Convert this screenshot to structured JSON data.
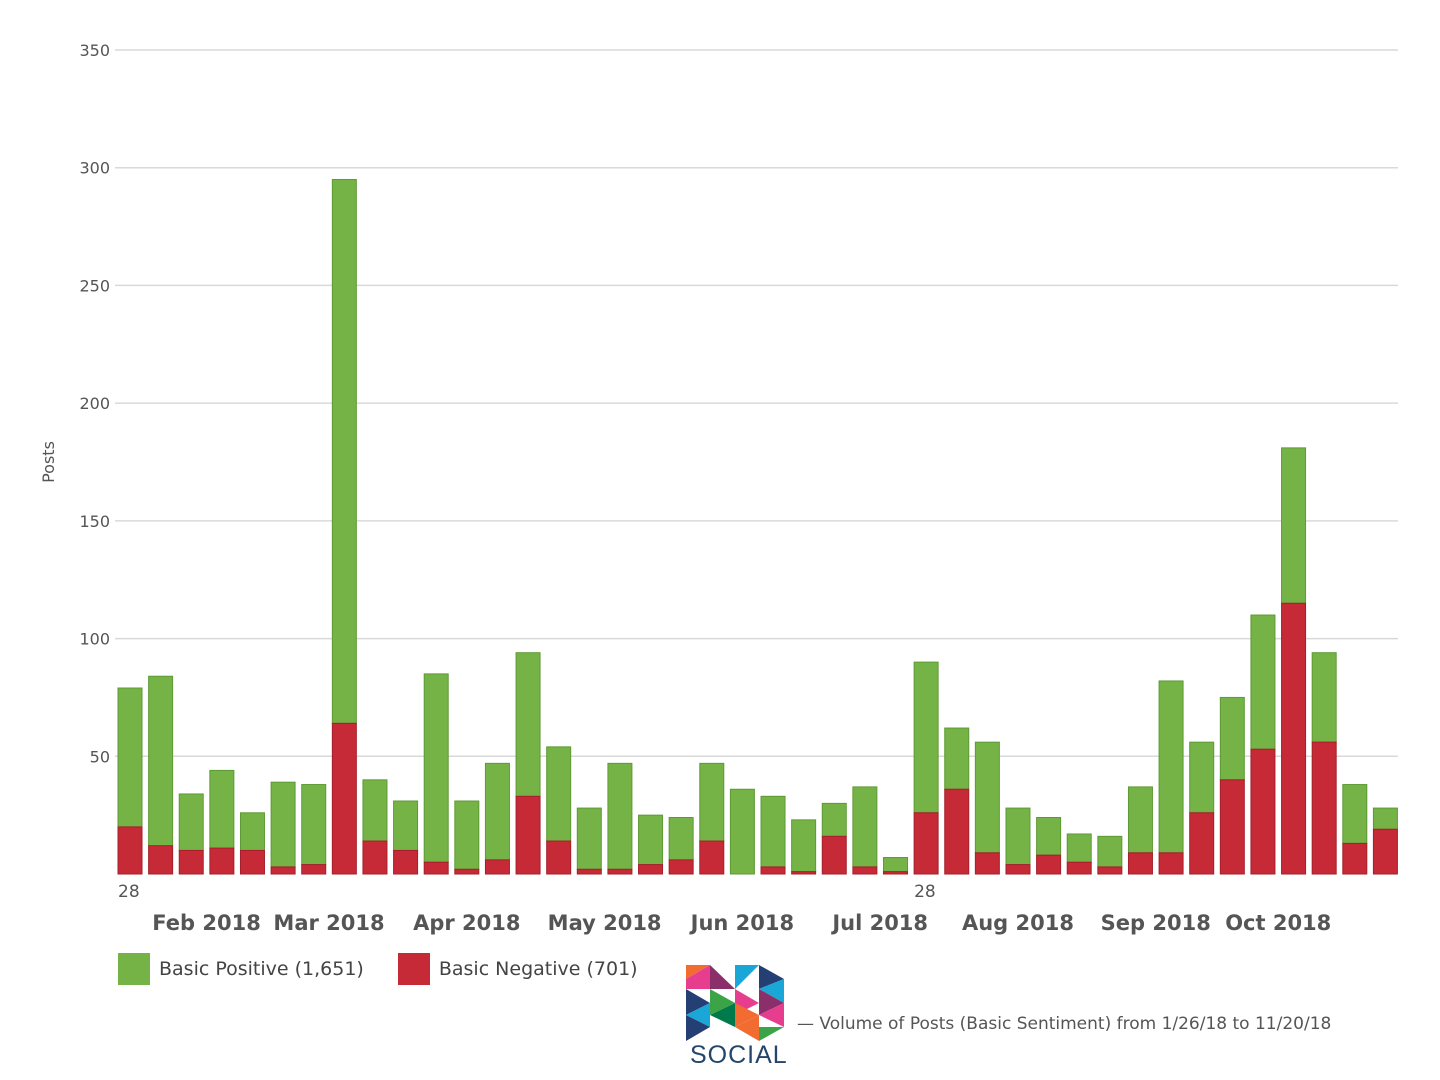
{
  "chart_data": {
    "type": "bar",
    "stacked": true,
    "ylabel": "Posts",
    "ylim": [
      0,
      350
    ],
    "yticks": [
      50,
      100,
      150,
      200,
      250,
      300,
      350
    ],
    "grid": true,
    "legend_position": "bottom-left",
    "x_minor_labels": [
      {
        "label": "28",
        "bar_index": 0
      },
      {
        "label": "28",
        "bar_index": 26
      }
    ],
    "x_major_labels": [
      {
        "label": "Feb 2018",
        "bar_index": 2.5
      },
      {
        "label": "Mar 2018",
        "bar_index": 6.5
      },
      {
        "label": "Apr 2018",
        "bar_index": 11
      },
      {
        "label": "May 2018",
        "bar_index": 15.5
      },
      {
        "label": "Jun 2018",
        "bar_index": 20
      },
      {
        "label": "Jul 2018",
        "bar_index": 24.5
      },
      {
        "label": "Aug 2018",
        "bar_index": 29
      },
      {
        "label": "Sep 2018",
        "bar_index": 33.5
      },
      {
        "label": "Oct 2018",
        "bar_index": 37.5
      }
    ],
    "series": [
      {
        "name": "Basic Negative",
        "legend": "Basic Negative (701)",
        "color": "#c62a36",
        "values": [
          20,
          12,
          10,
          11,
          10,
          3,
          4,
          64,
          14,
          10,
          5,
          2,
          6,
          33,
          14,
          2,
          2,
          4,
          6,
          14,
          0,
          3,
          1,
          16,
          3,
          1,
          26,
          36,
          9,
          4,
          8,
          5,
          3,
          9,
          9,
          26,
          40,
          53,
          115,
          56,
          13,
          19
        ]
      },
      {
        "name": "Basic Positive",
        "legend": "Basic Positive (1,651)",
        "color": "#75b347",
        "values": [
          59,
          72,
          24,
          33,
          16,
          36,
          34,
          231,
          26,
          21,
          80,
          29,
          41,
          61,
          40,
          26,
          45,
          21,
          18,
          33,
          36,
          30,
          22,
          14,
          34,
          6,
          64,
          26,
          47,
          24,
          16,
          12,
          13,
          28,
          73,
          30,
          35,
          57,
          66,
          38,
          25,
          9
        ]
      }
    ]
  },
  "brand": {
    "name": "SOCIAL",
    "icon": "kaleidoscope-logo-icon",
    "colors": [
      "#f26b30",
      "#e63d8e",
      "#1aa6d6",
      "#243f73",
      "#3aa447",
      "#8b2f6a"
    ]
  },
  "caption": "— Volume of Posts (Basic Sentiment) from 1/26/18 to 11/20/18"
}
